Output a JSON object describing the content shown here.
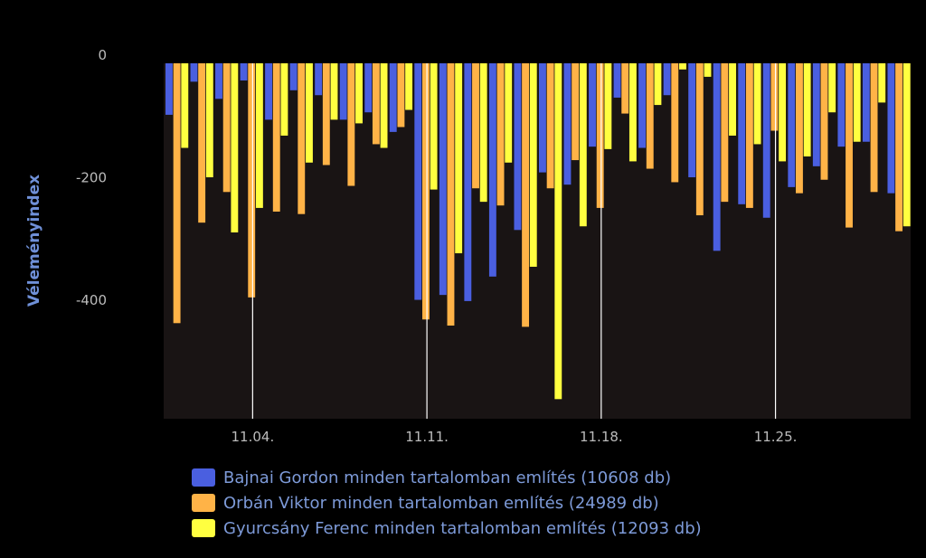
{
  "chart_data": {
    "type": "bar",
    "ylabel": "Véleményindex",
    "ylim": [
      -580,
      0
    ],
    "yticks": [
      0,
      -200,
      -400
    ],
    "ytick_labels": [
      "0",
      "-200",
      "-400"
    ],
    "xtick_labels": [
      "11.04.",
      "11.11.",
      "11.18.",
      "11.25."
    ],
    "xtick_day_index": [
      3,
      10,
      17,
      24
    ],
    "grid": false,
    "legend_position": "bottom",
    "day_count": 30,
    "series": [
      {
        "name": "Bajnai Gordon minden tartalomban említés (10608 db)",
        "color": "#4a5fe0",
        "values": [
          -84,
          -30,
          -58,
          -28,
          -92,
          -44,
          -52,
          -92,
          -80,
          -112,
          -386,
          -378,
          -388,
          -348,
          -272,
          -178,
          -198,
          -136,
          -56,
          -138,
          -52,
          -186,
          -306,
          -230,
          -252,
          -202,
          -168,
          -136,
          -128,
          -212
        ]
      },
      {
        "name": "Orbán Viktor minden tartalomban említés (24989 db)",
        "color": "#ffb347",
        "values": [
          -424,
          -260,
          -210,
          -382,
          -242,
          -246,
          -166,
          -200,
          -132,
          -104,
          -418,
          -428,
          -204,
          -232,
          -430,
          -204,
          -158,
          -236,
          -82,
          -172,
          -194,
          -248,
          -226,
          -236,
          -110,
          -212,
          -190,
          -268,
          -210,
          -274
        ]
      },
      {
        "name": "Gyurcsány Ferenc minden tartalomban említés (12093 db)",
        "color": "#ffff40",
        "values": [
          -138,
          -186,
          -276,
          -236,
          -118,
          -162,
          -92,
          -98,
          -138,
          -76,
          -206,
          -310,
          -226,
          -162,
          -332,
          -548,
          -266,
          -140,
          -160,
          -68,
          -10,
          -22,
          -118,
          -132,
          -160,
          -152,
          -80,
          -128,
          -64,
          -266
        ]
      }
    ]
  }
}
